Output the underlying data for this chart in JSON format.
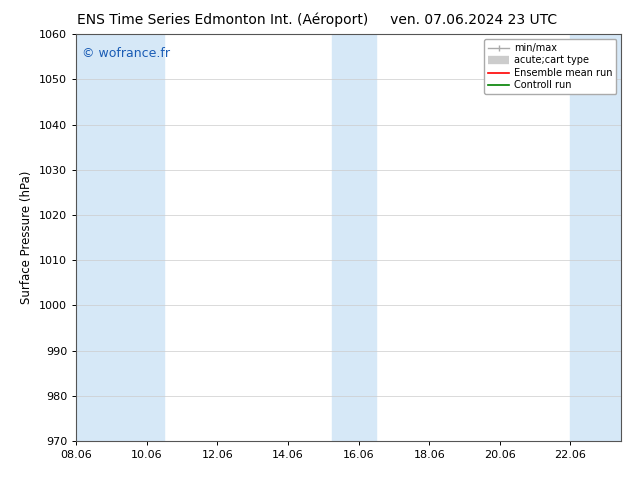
{
  "title_left": "ENS Time Series Edmonton Int. (Aéroport)",
  "title_right": "ven. 07.06.2024 23 UTC",
  "ylabel": "Surface Pressure (hPa)",
  "xlim": [
    8.06,
    23.5
  ],
  "ylim": [
    970,
    1060
  ],
  "yticks": [
    970,
    980,
    990,
    1000,
    1010,
    1020,
    1030,
    1040,
    1050,
    1060
  ],
  "xticks": [
    8.06,
    10.06,
    12.06,
    14.06,
    16.06,
    18.06,
    20.06,
    22.06
  ],
  "xticklabels": [
    "08.06",
    "10.06",
    "12.06",
    "14.06",
    "16.06",
    "18.06",
    "20.06",
    "22.06"
  ],
  "watermark": "© wofrance.fr",
  "watermark_color": "#1a5cb5",
  "background_color": "#ffffff",
  "plot_bg_color": "#ffffff",
  "shaded_bands": [
    {
      "xmin": 8.06,
      "xmax": 9.3,
      "color": "#d6e8f7"
    },
    {
      "xmin": 9.3,
      "xmax": 10.56,
      "color": "#d6e8f7"
    },
    {
      "xmin": 15.3,
      "xmax": 16.56,
      "color": "#d6e8f7"
    },
    {
      "xmin": 22.06,
      "xmax": 23.5,
      "color": "#d6e8f7"
    }
  ],
  "grid_color": "#cccccc",
  "tick_color": "#000000",
  "title_fontsize": 10,
  "label_fontsize": 8.5,
  "tick_fontsize": 8
}
